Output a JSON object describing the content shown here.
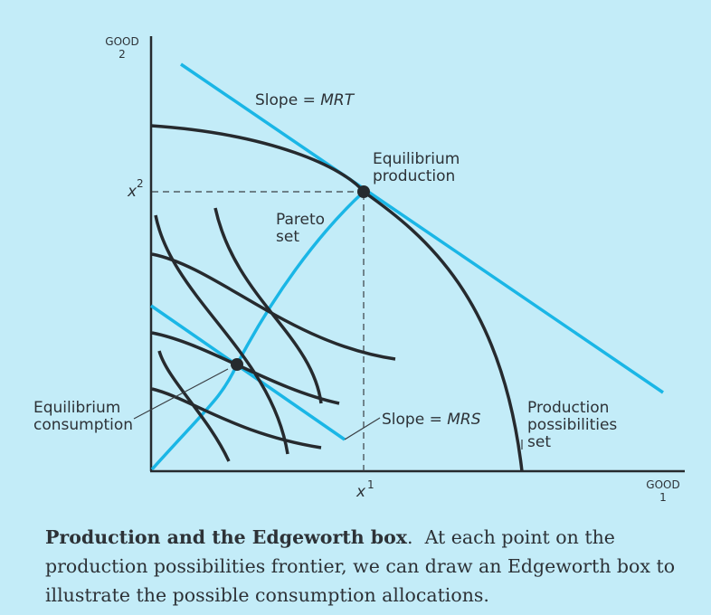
{
  "axes": {
    "y_label_line1": "GOOD",
    "y_label_line2": "2",
    "x_label_line1": "GOOD",
    "x_label_line2": "1",
    "x_tick_label": "x",
    "x_tick_sup": "1",
    "y_tick_label": "x",
    "y_tick_sup": "2"
  },
  "labels": {
    "mrt_prefix": "Slope = ",
    "mrt_value": "MRT",
    "mrs_prefix": "Slope = ",
    "mrs_value": "MRS",
    "eq_production_line1": "Equilibrium",
    "eq_production_line2": "production",
    "pareto_line1": "Pareto",
    "pareto_line2": "set",
    "eq_consumption_line1": "Equilibrium",
    "eq_consumption_line2": "consumption",
    "pps_line1": "Production",
    "pps_line2": "possibilities",
    "pps_line3": "set"
  },
  "caption": {
    "title": "Production and the Edgeworth box",
    "title_end": ".",
    "body": "At each point on the production possibilities frontier, we can draw an Edgeworth box to illustrate the possible consumption allocations."
  },
  "colors": {
    "background": "#c3ecf8",
    "curve": "#262a2e",
    "accent": "#1ab6e6",
    "text": "#2d3237"
  }
}
